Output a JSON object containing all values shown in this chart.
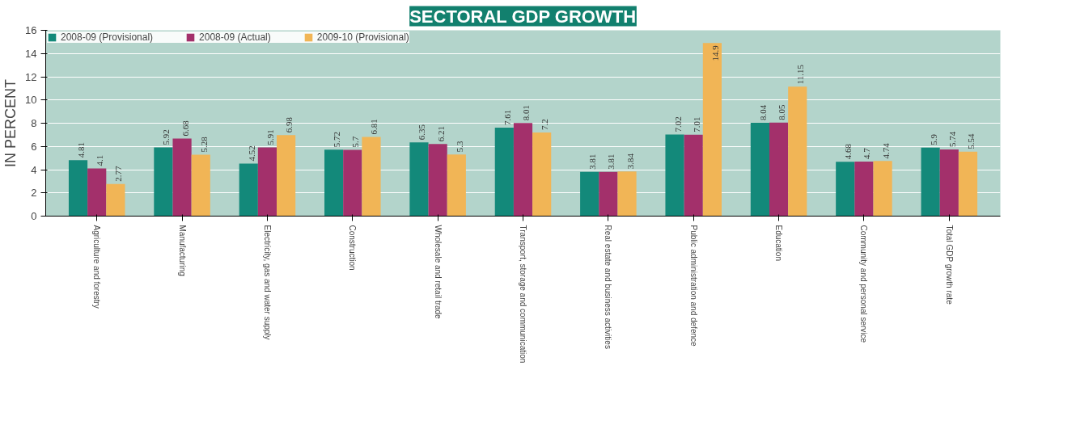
{
  "chart_data": {
    "type": "bar",
    "title": "SECTORAL GDP GROWTH",
    "ylabel": "IN PERCENT",
    "categories": [
      "Agriculture and forestry",
      "Manufacturing",
      "Electricity, gas and water supply",
      "Construction",
      "Wholesale and retail trade",
      "Transport, storage and communication",
      "Real estate and business activities",
      "Public administration and defence",
      "Education",
      "Community and personal service",
      "Total GDP growth rate"
    ],
    "series": [
      {
        "name": "2008-09 (Provisional)",
        "color": "#13897a",
        "values": [
          4.81,
          5.92,
          4.52,
          5.72,
          6.35,
          7.61,
          3.81,
          7.02,
          8.04,
          4.68,
          5.9
        ]
      },
      {
        "name": "2008-09 (Actual)",
        "color": "#a3306b",
        "values": [
          4.1,
          6.68,
          5.91,
          5.7,
          6.21,
          8.01,
          3.81,
          7.01,
          8.05,
          4.7,
          5.74
        ]
      },
      {
        "name": "2009-10 (Provisional)",
        "color": "#f1b556",
        "values": [
          2.77,
          5.28,
          6.98,
          6.81,
          5.3,
          7.2,
          3.84,
          14.9,
          11.15,
          4.74,
          5.54
        ]
      }
    ],
    "ylim": [
      0,
      16
    ],
    "yticks": [
      0,
      2,
      4,
      6,
      8,
      10,
      12,
      14,
      16
    ],
    "grid": "y",
    "legend": "top left",
    "data_labels": true
  }
}
